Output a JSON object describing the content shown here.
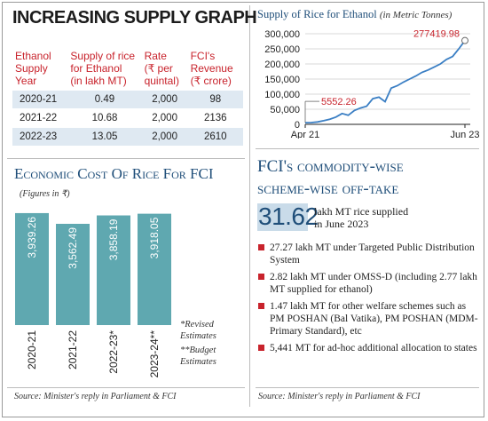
{
  "main_title": "INCREASING SUPPLY GRAPH",
  "supply_table": {
    "headers": [
      [
        "Ethanol",
        "Supply",
        "Year"
      ],
      [
        "Supply of rice",
        "for Ethanol",
        "(in lakh MT)"
      ],
      [
        "Rate",
        "(₹ per",
        "quintal)"
      ],
      [
        "FCI's",
        "Revenue",
        "(₹ crore)"
      ]
    ],
    "rows": [
      [
        "2020-21",
        "0.49",
        "2,000",
        "98"
      ],
      [
        "2021-22",
        "10.68",
        "2,000",
        "2136"
      ],
      [
        "2022-23",
        "13.05",
        "2,000",
        "2610"
      ]
    ]
  },
  "econ": {
    "title": "Economic Cost Of Rice For FCI",
    "figures_note": "(Figures in ₹)",
    "notes": [
      "*Revised",
      "Estimates",
      "**Budget",
      "Estimates"
    ],
    "source": "Source: Minister's reply in Parliament & FCI"
  },
  "line_panel": {
    "title": "Supply of Rice for Ethanol",
    "subtitle": "(in Metric Tonnes)"
  },
  "fci": {
    "title_line1": "FCI's commodity-wise",
    "title_line2": "scheme-wise off-take",
    "big_number": "31.62",
    "big_label_1": "lakh MT rice supplied",
    "big_label_2": "in June 2023",
    "bullets": [
      "27.27 lakh MT under Targeted Public Distribution System",
      "2.82 lakh MT under OMSS-D (including 2.77 lakh MT supplied for ethanol)",
      "1.47 lakh MT for other welfare schemes such as PM POSHAN (Bal Vatika), PM POSHAN (MDM-Primary Standard), etc",
      "5,441 MT for ad-hoc additional allocation to states"
    ],
    "source": "Source: Minister's reply in Parliament & FCI"
  },
  "colors": {
    "bar": "#5fa8b0",
    "line": "#3b7fc4",
    "accent_red": "#c8232c",
    "navy": "#1f4e79"
  },
  "chart_data": [
    {
      "type": "bar",
      "title": "Economic Cost Of Rice For FCI",
      "categories": [
        "2020-21",
        "2021-22",
        "2022-23*",
        "2023-24**"
      ],
      "values": [
        3939.26,
        3562.49,
        3858.19,
        3918.05
      ],
      "labels": [
        "3,939.26",
        "3,562.49",
        "3,858.19",
        "3,918.05"
      ],
      "ylim": [
        0,
        4000
      ]
    },
    {
      "type": "line",
      "title": "Supply of Rice for Ethanol",
      "ylabel": "(in Metric Tonnes)",
      "ylim": [
        0,
        300000
      ],
      "yticks": [
        "0",
        "50,000",
        "100,000",
        "150,000",
        "200,000",
        "250,000",
        "300,000"
      ],
      "x_start_label": "Apr 21",
      "x_end_label": "Jun 23",
      "annotation_start": "5552.26",
      "annotation_end": "277419.98",
      "x": [
        0,
        1,
        2,
        3,
        4,
        5,
        6,
        7,
        8,
        9,
        10,
        11,
        12,
        13,
        14,
        15,
        16,
        17,
        18,
        19,
        20,
        21,
        22,
        23,
        24,
        25,
        26
      ],
      "values": [
        5552.26,
        6000,
        8000,
        12000,
        17000,
        24000,
        36000,
        30000,
        46000,
        54000,
        60000,
        85000,
        90000,
        75000,
        120000,
        128000,
        140000,
        150000,
        160000,
        172000,
        180000,
        190000,
        200000,
        215000,
        225000,
        250000,
        277419.98
      ]
    }
  ]
}
